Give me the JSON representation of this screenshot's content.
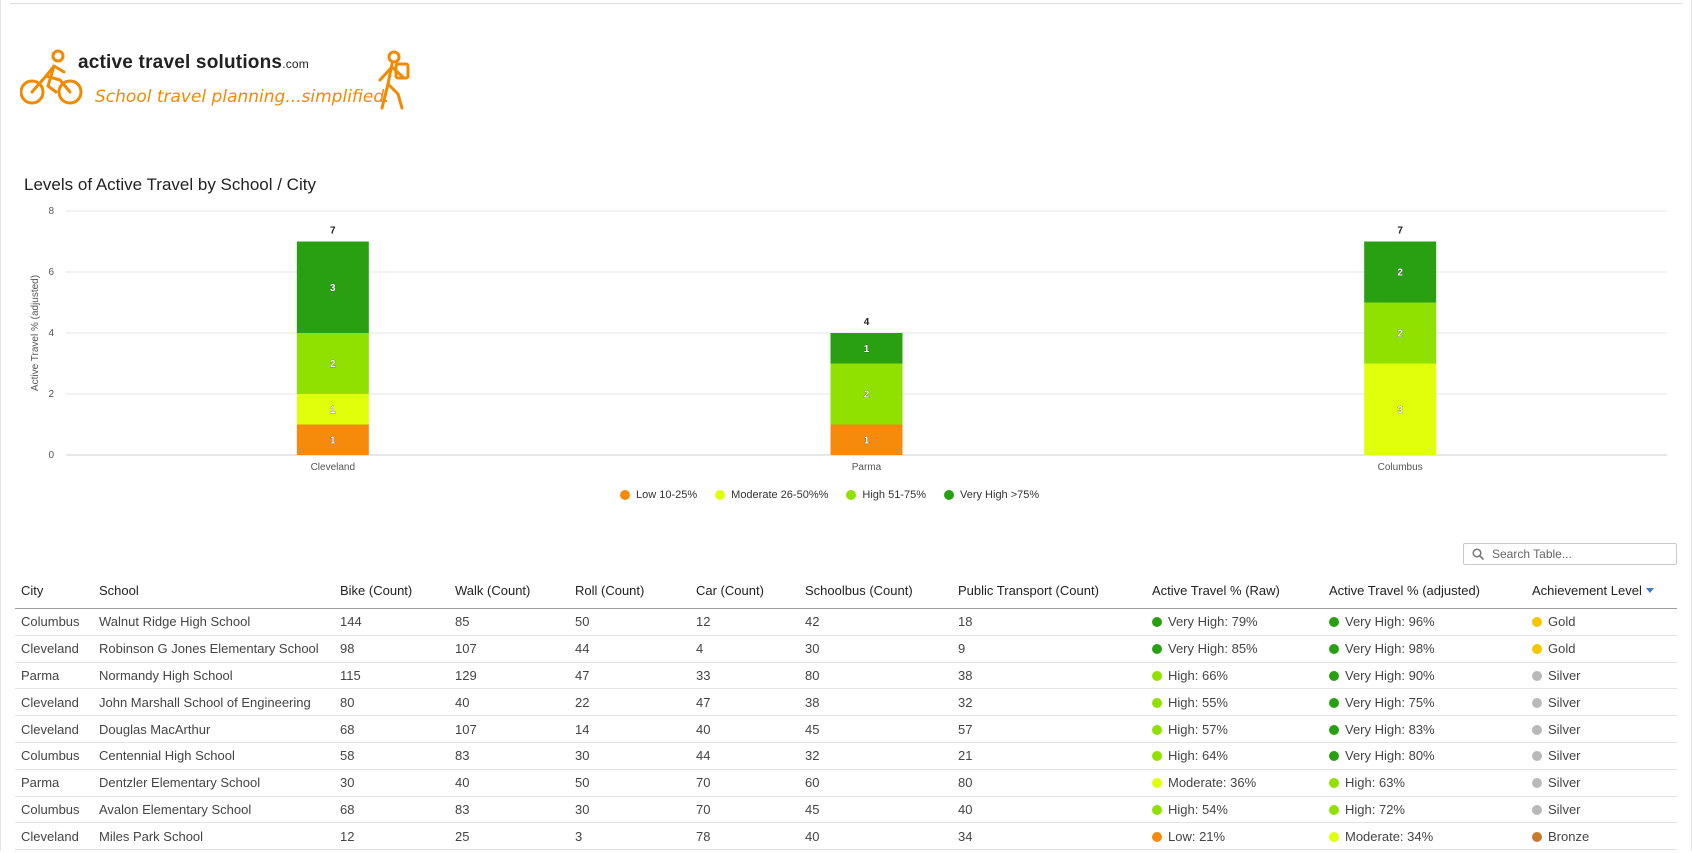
{
  "logo": {
    "brand": "active travel solutions",
    "brand_suffix": ".com",
    "tagline": "School travel planning...simplified."
  },
  "colors": {
    "low": "#f68a0b",
    "moderate": "#e0ff0a",
    "high": "#90e000",
    "very_high": "#29a012",
    "gold": "#f5c600",
    "silver": "#b9b9b9",
    "bronze": "#c87a2c"
  },
  "chart_title": "Levels of Active Travel by School / City",
  "chart_data": {
    "type": "bar",
    "stacked": true,
    "title": "Levels of Active Travel by School / City",
    "xlabel": "",
    "ylabel": "Active Travel % (adjusted)",
    "ylim": [
      0,
      8
    ],
    "yticks": [
      0,
      2,
      4,
      6,
      8
    ],
    "grid": true,
    "categories": [
      "Cleveland",
      "Parma",
      "Columbus"
    ],
    "totals": [
      7,
      4,
      7
    ],
    "series": [
      {
        "name": "Low 10-25%",
        "color": "#f68a0b",
        "values": [
          1,
          1,
          0
        ]
      },
      {
        "name": "Moderate 26-50%%",
        "color": "#e0ff0a",
        "values": [
          1,
          0,
          3
        ]
      },
      {
        "name": "High 51-75%",
        "color": "#90e000",
        "values": [
          2,
          2,
          2
        ]
      },
      {
        "name": "Very High >75%",
        "color": "#29a012",
        "values": [
          3,
          1,
          2
        ]
      }
    ],
    "legend_position": "bottom"
  },
  "search": {
    "placeholder": "Search Table..."
  },
  "table": {
    "columns": [
      "City",
      "School",
      "Bike (Count)",
      "Walk (Count)",
      "Roll (Count)",
      "Car (Count)",
      "Schoolbus (Count)",
      "Public Transport (Count)",
      "Active Travel % (Raw)",
      "Active Travel % (adjusted)",
      "Achievement Level"
    ],
    "rows": [
      {
        "city": "Columbus",
        "school": "Walnut Ridge High School",
        "bike": "144",
        "walk": "85",
        "roll": "50",
        "car": "12",
        "bus": "42",
        "pt": "18",
        "raw": "Very High: 79%",
        "raw_level": "very_high",
        "adj": "Very High: 96%",
        "adj_level": "very_high",
        "ach": "Gold",
        "ach_level": "gold"
      },
      {
        "city": "Cleveland",
        "school": "Robinson G Jones Elementary School",
        "bike": "98",
        "walk": "107",
        "roll": "44",
        "car": "4",
        "bus": "30",
        "pt": "9",
        "raw": "Very High: 85%",
        "raw_level": "very_high",
        "adj": "Very High: 98%",
        "adj_level": "very_high",
        "ach": "Gold",
        "ach_level": "gold"
      },
      {
        "city": "Parma",
        "school": "Normandy High School",
        "bike": "115",
        "walk": "129",
        "roll": "47",
        "car": "33",
        "bus": "80",
        "pt": "38",
        "raw": "High: 66%",
        "raw_level": "high",
        "adj": "Very High: 90%",
        "adj_level": "very_high",
        "ach": "Silver",
        "ach_level": "silver"
      },
      {
        "city": "Cleveland",
        "school": "John Marshall School of Engineering",
        "bike": "80",
        "walk": "40",
        "roll": "22",
        "car": "47",
        "bus": "38",
        "pt": "32",
        "raw": "High: 55%",
        "raw_level": "high",
        "adj": "Very High: 75%",
        "adj_level": "very_high",
        "ach": "Silver",
        "ach_level": "silver"
      },
      {
        "city": "Cleveland",
        "school": "Douglas MacArthur",
        "bike": "68",
        "walk": "107",
        "roll": "14",
        "car": "40",
        "bus": "45",
        "pt": "57",
        "raw": "High: 57%",
        "raw_level": "high",
        "adj": "Very High: 83%",
        "adj_level": "very_high",
        "ach": "Silver",
        "ach_level": "silver"
      },
      {
        "city": "Columbus",
        "school": "Centennial High School",
        "bike": "58",
        "walk": "83",
        "roll": "30",
        "car": "44",
        "bus": "32",
        "pt": "21",
        "raw": "High: 64%",
        "raw_level": "high",
        "adj": "Very High: 80%",
        "adj_level": "very_high",
        "ach": "Silver",
        "ach_level": "silver"
      },
      {
        "city": "Parma",
        "school": "Dentzler Elementary School",
        "bike": "30",
        "walk": "40",
        "roll": "50",
        "car": "70",
        "bus": "60",
        "pt": "80",
        "raw": "Moderate: 36%",
        "raw_level": "moderate",
        "adj": "High: 63%",
        "adj_level": "high",
        "ach": "Silver",
        "ach_level": "silver"
      },
      {
        "city": "Columbus",
        "school": "Avalon Elementary School",
        "bike": "68",
        "walk": "83",
        "roll": "30",
        "car": "70",
        "bus": "45",
        "pt": "40",
        "raw": "High: 54%",
        "raw_level": "high",
        "adj": "High: 72%",
        "adj_level": "high",
        "ach": "Silver",
        "ach_level": "silver"
      },
      {
        "city": "Cleveland",
        "school": "Miles Park School",
        "bike": "12",
        "walk": "25",
        "roll": "3",
        "car": "78",
        "bus": "40",
        "pt": "34",
        "raw": "Low: 21%",
        "raw_level": "low",
        "adj": "Moderate: 34%",
        "adj_level": "moderate",
        "ach": "Bronze",
        "ach_level": "bronze"
      }
    ]
  }
}
